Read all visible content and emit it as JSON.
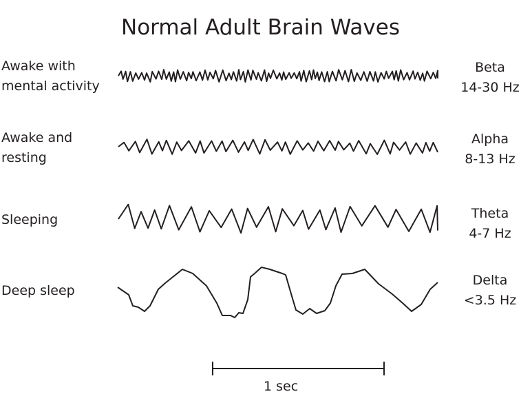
{
  "title": "Normal Adult Brain Waves",
  "rows": [
    {
      "state_line1": "Awake with",
      "state_line2": "mental activity",
      "band": "Beta",
      "freq": "14-30 Hz"
    },
    {
      "state_line1": "Awake and",
      "state_line2": "resting",
      "band": "Alpha",
      "freq": "8-13 Hz"
    },
    {
      "state_line1": "Sleeping",
      "state_line2": "",
      "band": "Theta",
      "freq": "4-7 Hz"
    },
    {
      "state_line1": "Deep sleep",
      "state_line2": "",
      "band": "Delta",
      "freq": "<3.5 Hz"
    }
  ],
  "scale_bar": {
    "label": "1 sec"
  },
  "stroke_color": "#231f20"
}
